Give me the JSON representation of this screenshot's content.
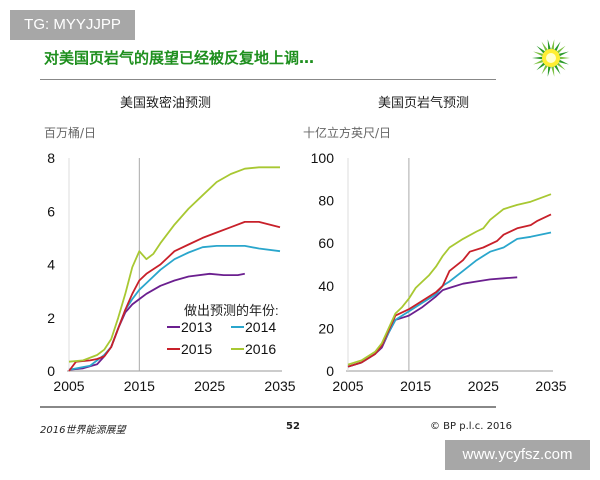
{
  "watermark_top": "TG: MYYJJPP",
  "watermark_bottom": "www.ycyfsz.com",
  "title": "对美国页岩气的展望已经被反复地上调…",
  "footer": {
    "left": "2016世界能源展望",
    "page": "52",
    "right": "© BP p.l.c. 2016"
  },
  "logo": "bp-helios-logo",
  "colors": {
    "title": "#1e8f1e",
    "2013": "#6b1f8f",
    "2014": "#2aa6cc",
    "2015": "#c8202a",
    "2016": "#a8c832"
  },
  "legend_title": "做出预测的年份:",
  "chart_data": [
    {
      "type": "line",
      "title": "美国致密油预测",
      "ylabel": "百万桶/日",
      "xlim": [
        2005,
        2035
      ],
      "ylim": [
        0,
        8
      ],
      "xticks": [
        2005,
        2015,
        2025,
        2035
      ],
      "yticks": [
        0,
        2,
        4,
        6,
        8
      ],
      "vline": 2015,
      "grid": false,
      "legend": "bottom-right",
      "series": [
        {
          "name": "2013",
          "x": [
            2005,
            2007,
            2009,
            2010,
            2011,
            2012,
            2013,
            2014,
            2015,
            2016,
            2018,
            2020,
            2022,
            2025,
            2027,
            2029,
            2030
          ],
          "y": [
            0.05,
            0.1,
            0.25,
            0.55,
            0.9,
            1.6,
            2.2,
            2.5,
            2.7,
            2.9,
            3.2,
            3.4,
            3.55,
            3.65,
            3.6,
            3.6,
            3.65
          ]
        },
        {
          "name": "2014",
          "x": [
            2005,
            2008,
            2010,
            2011,
            2012,
            2013,
            2014,
            2015,
            2016,
            2018,
            2020,
            2022,
            2024,
            2026,
            2028,
            2030,
            2032,
            2035
          ],
          "y": [
            0.05,
            0.2,
            0.6,
            0.9,
            1.6,
            2.3,
            2.7,
            3.05,
            3.3,
            3.8,
            4.2,
            4.45,
            4.65,
            4.7,
            4.7,
            4.7,
            4.6,
            4.5
          ]
        },
        {
          "name": "2015",
          "x": [
            2005,
            2006,
            2008,
            2009,
            2010,
            2011,
            2012,
            2013,
            2014,
            2015,
            2016,
            2018,
            2020,
            2022,
            2024,
            2026,
            2028,
            2030,
            2032,
            2035
          ],
          "y": [
            0.0,
            0.35,
            0.4,
            0.45,
            0.55,
            0.9,
            1.6,
            2.3,
            2.9,
            3.4,
            3.65,
            4.0,
            4.5,
            4.75,
            5.0,
            5.2,
            5.4,
            5.6,
            5.6,
            5.4
          ]
        },
        {
          "name": "2016",
          "x": [
            2005,
            2007,
            2009,
            2010,
            2011,
            2012,
            2013,
            2014,
            2015,
            2016,
            2017,
            2018,
            2020,
            2022,
            2024,
            2026,
            2028,
            2030,
            2032,
            2035
          ],
          "y": [
            0.35,
            0.4,
            0.6,
            0.8,
            1.2,
            2.0,
            2.9,
            3.9,
            4.5,
            4.2,
            4.4,
            4.8,
            5.5,
            6.1,
            6.6,
            7.1,
            7.4,
            7.6,
            7.65,
            7.65
          ]
        }
      ]
    },
    {
      "type": "line",
      "title": "美国页岩气预测",
      "ylabel": "十亿立方英尺/日",
      "xlim": [
        2005,
        2035
      ],
      "ylim": [
        0,
        100
      ],
      "xticks": [
        2005,
        2015,
        2025,
        2035
      ],
      "yticks": [
        0,
        20,
        40,
        60,
        80,
        100
      ],
      "vline": 2014,
      "grid": false,
      "series": [
        {
          "name": "2013",
          "x": [
            2005,
            2007,
            2009,
            2010,
            2011,
            2012,
            2013,
            2014,
            2016,
            2018,
            2019,
            2020,
            2022,
            2024,
            2026,
            2028,
            2030
          ],
          "y": [
            2,
            4,
            8,
            11,
            18,
            24,
            25,
            26,
            30,
            35,
            38,
            39,
            41,
            42,
            43,
            43.5,
            44
          ]
        },
        {
          "name": "2014",
          "x": [
            2005,
            2007,
            2009,
            2010,
            2011,
            2012,
            2013,
            2014,
            2016,
            2018,
            2019,
            2020,
            2022,
            2024,
            2026,
            2028,
            2030,
            2032,
            2035
          ],
          "y": [
            2,
            4,
            8,
            12,
            18,
            24,
            26,
            28,
            32,
            36,
            40,
            42,
            47,
            52,
            56,
            58,
            62,
            63,
            65
          ]
        },
        {
          "name": "2015",
          "x": [
            2005,
            2007,
            2009,
            2010,
            2011,
            2012,
            2013,
            2014,
            2016,
            2018,
            2019,
            2020,
            2022,
            2023,
            2025,
            2027,
            2028,
            2030,
            2032,
            2033,
            2035
          ],
          "y": [
            2,
            4,
            8,
            12,
            19,
            26,
            27.5,
            29,
            33,
            37,
            40,
            47,
            52,
            56,
            58,
            61,
            64,
            67,
            68.5,
            70.5,
            73.5
          ]
        },
        {
          "name": "2016",
          "x": [
            2005,
            2007,
            2009,
            2010,
            2011,
            2012,
            2013,
            2014,
            2015,
            2016,
            2017,
            2018,
            2019,
            2020,
            2022,
            2024,
            2025,
            2026,
            2028,
            2030,
            2032,
            2035
          ],
          "y": [
            3,
            5,
            9,
            13,
            20,
            27,
            30,
            34,
            39,
            42,
            45,
            49,
            54,
            58,
            62,
            65.5,
            67,
            71,
            76,
            78,
            79.5,
            83
          ]
        }
      ]
    }
  ]
}
